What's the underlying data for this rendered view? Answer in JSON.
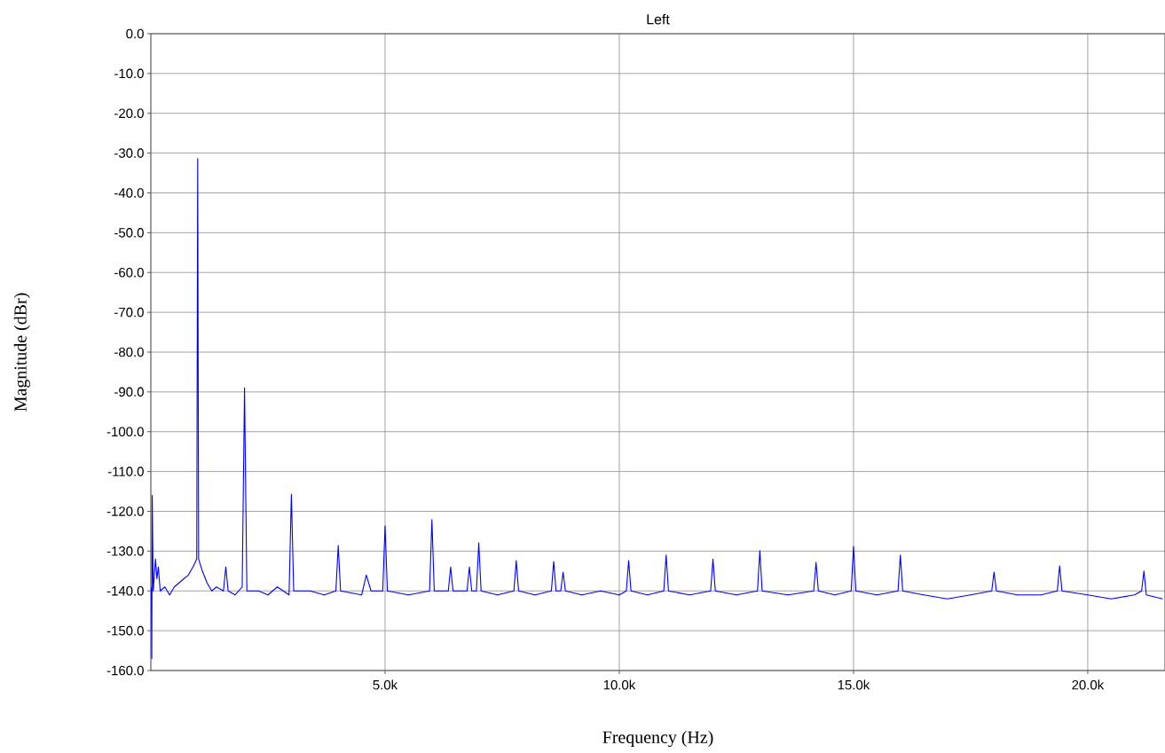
{
  "chart_data": {
    "type": "line",
    "title": "Left",
    "xlabel": "Frequency (Hz)",
    "ylabel": "Magnitude (dBr)",
    "color": "#0000ff",
    "grid": true,
    "xlim": [
      0,
      21650
    ],
    "ylim": [
      -160,
      0
    ],
    "xticks": [
      {
        "value": 5000,
        "label": "5.0k"
      },
      {
        "value": 10000,
        "label": "10.0k"
      },
      {
        "value": 15000,
        "label": "15.0k"
      },
      {
        "value": 20000,
        "label": "20.0k"
      }
    ],
    "yticks": [
      {
        "value": 0,
        "label": "0.0"
      },
      {
        "value": -10,
        "label": "-10.0"
      },
      {
        "value": -20,
        "label": "-20.0"
      },
      {
        "value": -30,
        "label": "-30.0"
      },
      {
        "value": -40,
        "label": "-40.0"
      },
      {
        "value": -50,
        "label": "-50.0"
      },
      {
        "value": -60,
        "label": "-60.0"
      },
      {
        "value": -70,
        "label": "-70.0"
      },
      {
        "value": -80,
        "label": "-80.0"
      },
      {
        "value": -90,
        "label": "-90.0"
      },
      {
        "value": -100,
        "label": "-100.0"
      },
      {
        "value": -110,
        "label": "-110.0"
      },
      {
        "value": -120,
        "label": "-120.0"
      },
      {
        "value": -130,
        "label": "-130.0"
      },
      {
        "value": -140,
        "label": "-140.0"
      },
      {
        "value": -150,
        "label": "-150.0"
      },
      {
        "value": -160,
        "label": "-160.0"
      }
    ],
    "x": [
      10,
      20,
      30,
      50,
      100,
      130,
      160,
      200,
      300,
      400,
      500,
      600,
      700,
      800,
      900,
      980,
      1000,
      1020,
      1100,
      1200,
      1300,
      1400,
      1550,
      1600,
      1650,
      1800,
      1950,
      2000,
      2050,
      2300,
      2500,
      2700,
      2950,
      3000,
      3050,
      3400,
      3700,
      3950,
      4000,
      4050,
      4500,
      4600,
      4700,
      4950,
      5000,
      5050,
      5500,
      5950,
      6000,
      6050,
      6350,
      6400,
      6450,
      6750,
      6800,
      6850,
      6950,
      7000,
      7050,
      7400,
      7750,
      7800,
      7850,
      8200,
      8550,
      8600,
      8650,
      8750,
      8800,
      8850,
      9200,
      9600,
      10000,
      10150,
      10200,
      10250,
      10600,
      10950,
      11000,
      11050,
      11500,
      11950,
      12000,
      12050,
      12500,
      12950,
      13000,
      13050,
      13600,
      14150,
      14200,
      14250,
      14600,
      14950,
      15000,
      15050,
      15500,
      15950,
      16000,
      16050,
      16500,
      17000,
      17500,
      17950,
      18000,
      18050,
      18500,
      19000,
      19350,
      19400,
      19450,
      20000,
      20500,
      21000,
      21150,
      21200,
      21250,
      21600
    ],
    "values": [
      -139,
      -157,
      -116,
      -140,
      -132,
      -137,
      -134,
      -140,
      -139,
      -141,
      -139,
      -138,
      -137,
      -136,
      -134,
      -132,
      -31.4,
      -132,
      -135,
      -138,
      -140,
      -139,
      -140,
      -134,
      -140,
      -141,
      -139,
      -89,
      -140,
      -140,
      -141,
      -139,
      -141,
      -115.7,
      -140,
      -140,
      -141,
      -140,
      -128.6,
      -140,
      -141,
      -136,
      -140,
      -140,
      -123.7,
      -140,
      -141,
      -140,
      -122.1,
      -140,
      -140,
      -134,
      -140,
      -140,
      -134,
      -140,
      -140,
      -127.9,
      -140,
      -141,
      -140,
      -132.4,
      -140,
      -141,
      -140,
      -132.6,
      -140,
      -140,
      -135.3,
      -140,
      -141,
      -140,
      -141,
      -140,
      -132.4,
      -140,
      -141,
      -140,
      -131,
      -140,
      -141,
      -140,
      -132,
      -140,
      -141,
      -140,
      -129.9,
      -140,
      -141,
      -140,
      -132.8,
      -140,
      -141,
      -140,
      -128.8,
      -140,
      -141,
      -140,
      -131,
      -140,
      -141,
      -142,
      -141,
      -140,
      -135.3,
      -140,
      -141,
      -141,
      -140,
      -133.7,
      -140,
      -141,
      -142,
      -141,
      -140,
      -135,
      -141,
      -142
    ]
  }
}
